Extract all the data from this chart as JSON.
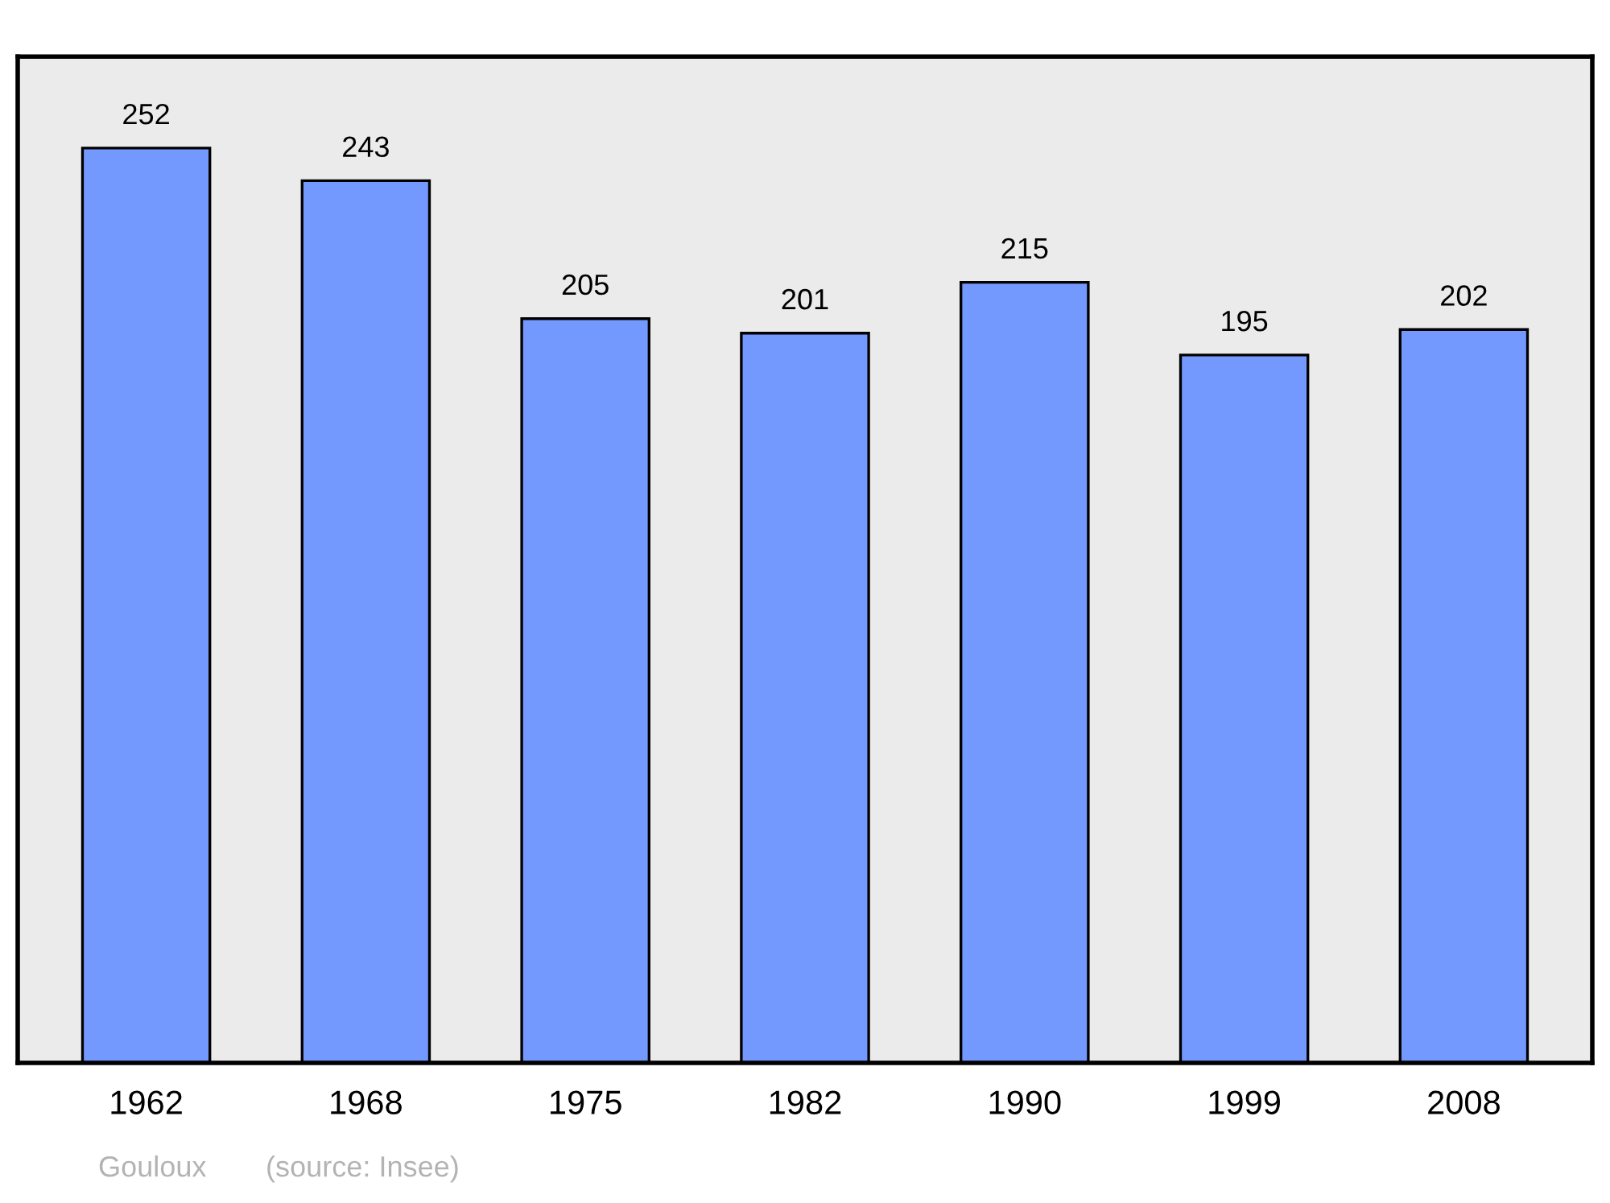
{
  "chart_data": {
    "type": "bar",
    "categories": [
      "1962",
      "1968",
      "1975",
      "1982",
      "1990",
      "1999",
      "2008"
    ],
    "values": [
      252,
      243,
      205,
      201,
      215,
      195,
      202
    ],
    "color": "#7399ff",
    "data_labels": true,
    "grid": false,
    "legend": false,
    "annotations": [
      "Gouloux",
      "(source: Insee)"
    ]
  }
}
